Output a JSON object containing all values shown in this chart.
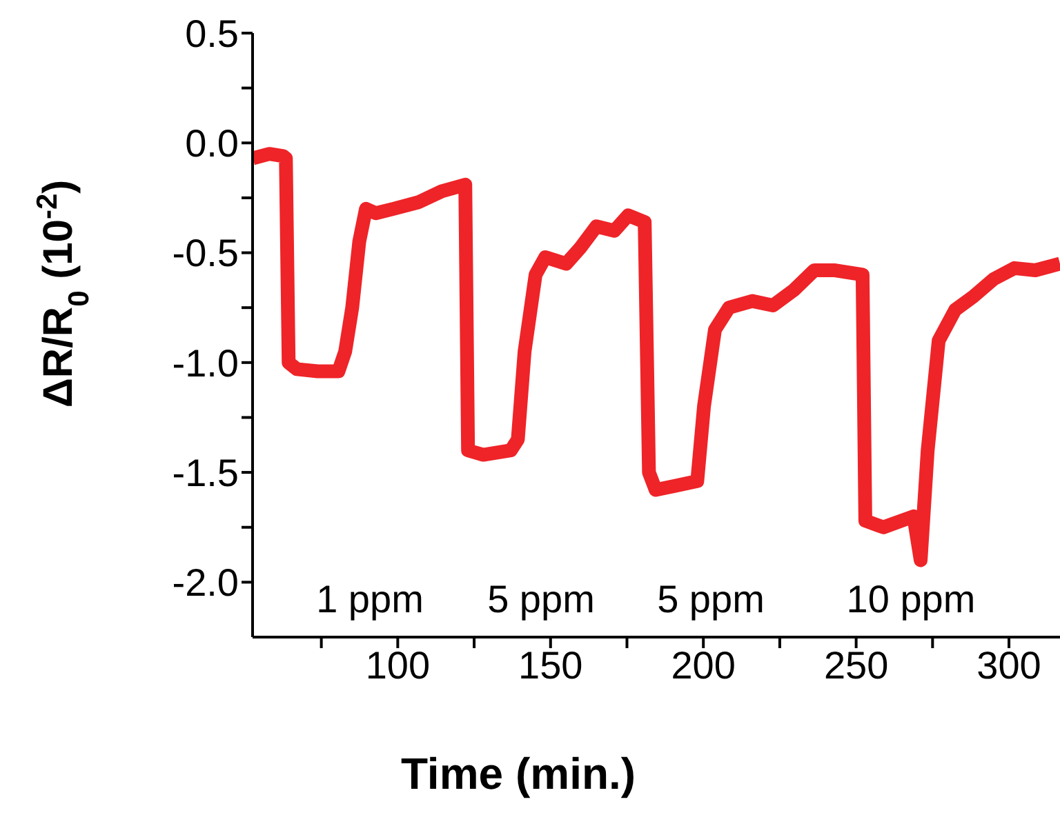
{
  "chart_data": {
    "type": "line",
    "xlabel": "Time (min.)",
    "ylabel": "ΔR/R$_{0}$ (10$^{-2}$)",
    "xlim": [
      52.5,
      316.7
    ],
    "ylim": [
      -2.25,
      0.5
    ],
    "xticks": [
      {
        "value": 75,
        "label": null
      },
      100,
      {
        "value": 125,
        "label": null
      },
      150,
      {
        "value": 175,
        "label": null
      },
      200,
      {
        "value": 225,
        "label": null
      },
      250,
      {
        "value": 275,
        "label": null
      },
      300
    ],
    "yticks": [
      {
        "value": -2,
        "label": "-2.0"
      },
      {
        "value": -1.75,
        "label": null
      },
      -1.5,
      {
        "value": -1.25,
        "label": null
      },
      {
        "value": -1,
        "label": "-1.0"
      },
      {
        "value": -0.75,
        "label": null
      },
      -0.5,
      {
        "value": -0.25,
        "label": null
      },
      {
        "value": 0,
        "label": "0.0"
      },
      {
        "value": 0.25,
        "label": null
      },
      0.5
    ],
    "grid": false,
    "legend": false,
    "series": [
      {
        "color": "#ee2428",
        "x": [
          52.6,
          58,
          62.5,
          63.4,
          64.3,
          67,
          73.8,
          80.6,
          82.8,
          85.1,
          87.4,
          89.6,
          92.8,
          98.6,
          106.8,
          114.4,
          122.1,
          123,
          128,
          137,
          139.3,
          141.5,
          145.1,
          148.3,
          155.1,
          159.6,
          165,
          170.9,
          175.4,
          180.8,
          182.2,
          184.4,
          191.2,
          198,
          200.2,
          203.8,
          208.4,
          216,
          222.8,
          229.6,
          236.3,
          243.1,
          252.1,
          253,
          258.9,
          268.8,
          271.1,
          273.4,
          277,
          282.4,
          288.3,
          295,
          301.8,
          308.6,
          316.7
        ],
        "values": [
          -0.07,
          -0.05,
          -0.06,
          -0.07,
          -1.0,
          -1.03,
          -1.04,
          -1.04,
          -0.95,
          -0.75,
          -0.45,
          -0.3,
          -0.32,
          -0.3,
          -0.27,
          -0.22,
          -0.19,
          -1.4,
          -1.42,
          -1.4,
          -1.35,
          -0.95,
          -0.6,
          -0.52,
          -0.55,
          -0.48,
          -0.38,
          -0.4,
          -0.33,
          -0.36,
          -1.5,
          -1.58,
          -1.56,
          -1.54,
          -1.2,
          -0.85,
          -0.75,
          -0.72,
          -0.74,
          -0.67,
          -0.58,
          -0.58,
          -0.6,
          -1.72,
          -1.75,
          -1.7,
          -1.9,
          -1.4,
          -0.9,
          -0.76,
          -0.7,
          -0.62,
          -0.57,
          -0.58,
          -0.55
        ]
      }
    ],
    "annotations": [
      "1 ppm",
      "5 ppm",
      "5 ppm",
      "10 ppm"
    ]
  }
}
